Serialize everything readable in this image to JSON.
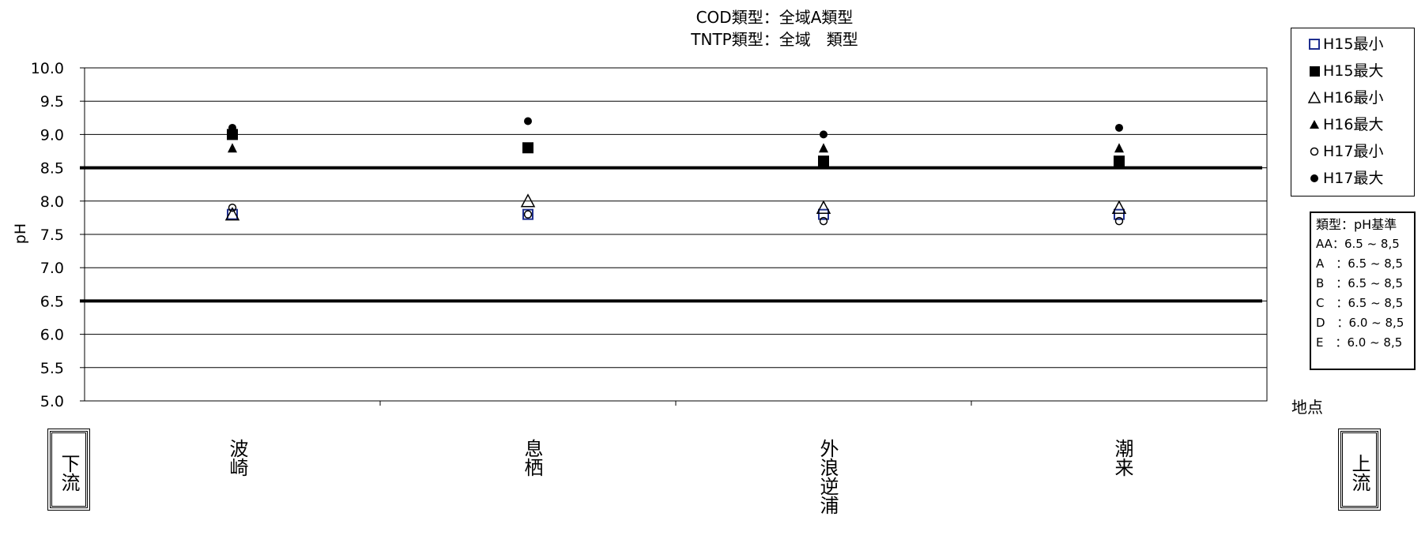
{
  "chart_data": {
    "type": "scatter",
    "title_lines": [
      "COD類型：全域A類型",
      "TNTP類型：全域　類型"
    ],
    "xlabel": "地点",
    "ylabel": "pH",
    "ylim": [
      5.0,
      10.0
    ],
    "ytick_labels": [
      "10.0",
      "9.5",
      "9.0",
      "8.5",
      "8.0",
      "7.5",
      "7.0",
      "6.5",
      "6.0",
      "5.5",
      "5.0"
    ],
    "categories": [
      "波崎",
      "息栖",
      "外浪逆浦",
      "潮来"
    ],
    "standard_lines": [
      8.5,
      6.5
    ],
    "grid": true,
    "legend_position": "right",
    "series": [
      {
        "name": "H15最小",
        "marker": "square-open",
        "color": "#1f2f8f",
        "values": [
          7.8,
          7.8,
          7.8,
          7.8
        ]
      },
      {
        "name": "H15最大",
        "marker": "square-filled",
        "color": "#000000",
        "values": [
          9.0,
          8.8,
          8.6,
          8.6
        ]
      },
      {
        "name": "H16最小",
        "marker": "triangle-open",
        "color": "#000000",
        "values": [
          7.8,
          8.0,
          7.9,
          7.9
        ]
      },
      {
        "name": "H16最大",
        "marker": "triangle-filled",
        "color": "#000000",
        "values": [
          8.8,
          8.8,
          8.8,
          8.8
        ]
      },
      {
        "name": "H17最小",
        "marker": "circle-open",
        "color": "#000000",
        "values": [
          7.9,
          7.8,
          7.7,
          7.7
        ]
      },
      {
        "name": "H17最大",
        "marker": "circle-filled",
        "color": "#000000",
        "values": [
          9.1,
          9.2,
          9.0,
          9.1
        ]
      }
    ]
  },
  "standards_box": {
    "title": "類型：pH基準",
    "rows": [
      "AA：6.5 ~ 8,5",
      "A　：6.5 ~ 8,5",
      "B　：6.5 ~ 8,5",
      "C　：6.5 ~ 8,5",
      "D　：6.0 ~ 8,5",
      "E　：6.0 ~ 8,5"
    ]
  },
  "direction": {
    "downstream": "下流",
    "upstream": "上流"
  }
}
